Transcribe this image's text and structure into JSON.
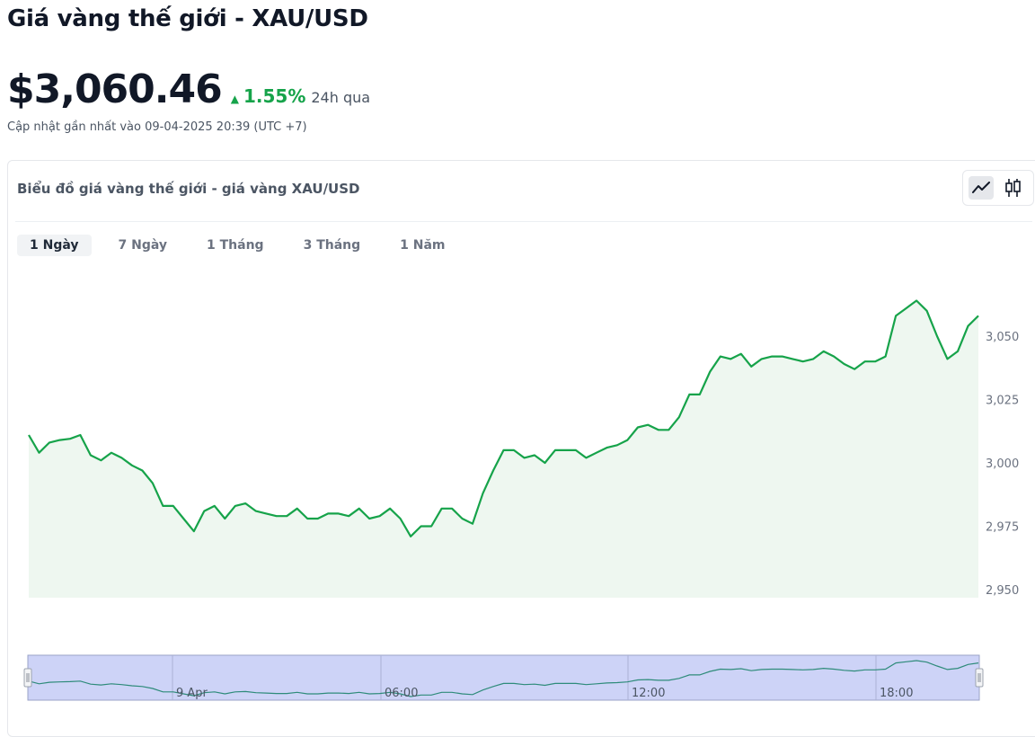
{
  "header": {
    "title": "Giá vàng thế giới - XAU/USD",
    "price": "$3,060.46",
    "change_pct": "1.55%",
    "change_period": "24h qua",
    "updated": "Cập nhật gần nhất vào 09-04-2025 20:39 (UTC +7)"
  },
  "card": {
    "title": "Biểu đồ giá vàng thế giới - giá vàng XAU/USD",
    "chart_types": [
      {
        "icon": "line-chart-icon",
        "active": true
      },
      {
        "icon": "candlestick-icon",
        "active": false
      }
    ]
  },
  "tabs": [
    {
      "label": "1 Ngày",
      "active": true
    },
    {
      "label": "7 Ngày",
      "active": false
    },
    {
      "label": "1 Tháng",
      "active": false
    },
    {
      "label": "3 Tháng",
      "active": false
    },
    {
      "label": "1 Năm",
      "active": false
    }
  ],
  "colors": {
    "line": "#16a34a",
    "area": "#eef7f0",
    "navigator": "#cdd3f7",
    "accent_up": "#16a34a"
  },
  "chart_data": {
    "type": "area",
    "yticks": [
      {
        "value": 2950,
        "label": "2,950"
      },
      {
        "value": 2975,
        "label": "2,975"
      },
      {
        "value": 3000,
        "label": "3,000"
      },
      {
        "value": 3025,
        "label": "3,025"
      },
      {
        "value": 3050,
        "label": "3,050"
      }
    ],
    "ylim": [
      2950,
      3060.5
    ],
    "y": [
      3011,
      3004,
      3008,
      3009,
      3009.5,
      3011,
      3003,
      3001,
      3004,
      3002,
      2999,
      2997,
      2992,
      2983,
      2983,
      2978,
      2973,
      2981,
      2983,
      2978,
      2983,
      2984,
      2981,
      2980,
      2979,
      2979,
      2982,
      2978,
      2978,
      2980,
      2980,
      2979,
      2982,
      2978,
      2979,
      2982,
      2978,
      2971,
      2975,
      2975,
      2982,
      2982,
      2978,
      2976,
      2988,
      2997,
      3005,
      3005,
      3002,
      3003,
      3000,
      3005,
      3005,
      3005,
      3002,
      3004,
      3006,
      3007,
      3009,
      3014,
      3015,
      3013,
      3013,
      3018,
      3027,
      3027,
      3036,
      3042,
      3041,
      3043,
      3038,
      3041,
      3042,
      3042,
      3041,
      3040,
      3041,
      3044,
      3042,
      3039,
      3037,
      3040,
      3040,
      3042,
      3058,
      3061,
      3064,
      3060,
      3050,
      3041,
      3044,
      3054,
      3058
    ],
    "navigator_labels": [
      "9 Apr",
      "06:00",
      "12:00",
      "18:00"
    ]
  }
}
